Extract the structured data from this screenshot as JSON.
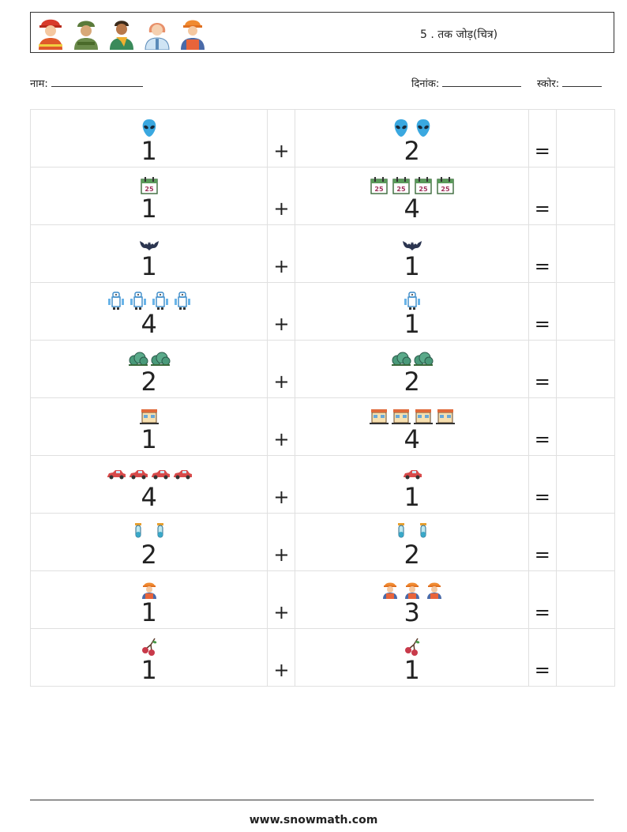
{
  "header": {
    "avatars": [
      "firefighter-icon",
      "soldier-icon",
      "man-scarf-icon",
      "nurse-icon",
      "worker-icon"
    ],
    "title": "5 . तक जोड़(चित्र)"
  },
  "info": {
    "name_label": "नाम:",
    "date_label": "दिनांक:",
    "score_label": "स्कोर:"
  },
  "symbols": {
    "plus": "+",
    "equals": "="
  },
  "problems": [
    {
      "a": "1",
      "b": "2",
      "icon": "alien-icon"
    },
    {
      "a": "1",
      "b": "4",
      "icon": "calendar-icon"
    },
    {
      "a": "1",
      "b": "1",
      "icon": "bat-icon"
    },
    {
      "a": "4",
      "b": "1",
      "icon": "robot-icon"
    },
    {
      "a": "2",
      "b": "2",
      "icon": "bush-icon"
    },
    {
      "a": "1",
      "b": "4",
      "icon": "storefront-icon"
    },
    {
      "a": "4",
      "b": "1",
      "icon": "car-icon"
    },
    {
      "a": "2",
      "b": "2",
      "icon": "test-tube-icon"
    },
    {
      "a": "1",
      "b": "3",
      "icon": "worker-icon"
    },
    {
      "a": "1",
      "b": "1",
      "icon": "cherries-icon"
    }
  ],
  "footer": {
    "url": "www.snowmath.com"
  }
}
